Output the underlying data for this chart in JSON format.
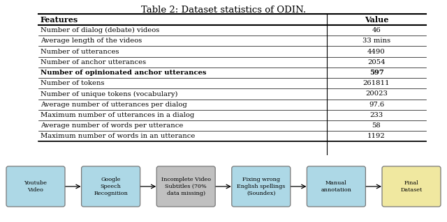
{
  "title": "Table 2: Dataset statistics of ODIN.",
  "headers": [
    "Features",
    "Value"
  ],
  "rows": [
    [
      "Number of dialog (debate) videos",
      "46"
    ],
    [
      "Average length of the videos",
      "33 mins"
    ],
    [
      "Number of utterances",
      "4490"
    ],
    [
      "Number of anchor utterances",
      "2054"
    ],
    [
      "Number of opinionated anchor utterances",
      "597"
    ],
    [
      "Number of tokens",
      "261811"
    ],
    [
      "Number of unique tokens (vocabulary)",
      "20023"
    ],
    [
      "Average number of utterances per dialog",
      "97.6"
    ],
    [
      "Maximum number of utterances in a dialog",
      "233"
    ],
    [
      "Average number of words per utterance",
      "58"
    ],
    [
      "Maximum number of words in an utterance",
      "1192"
    ]
  ],
  "bold_row_index": 4,
  "flow_boxes": [
    {
      "label": "Youtube\nVideo",
      "color": "#add8e6"
    },
    {
      "label": "Google\nSpeech\nRecognition",
      "color": "#add8e6"
    },
    {
      "label": "Incomplete Video\nSubtitles (70%\ndata missing)",
      "color": "#c0c0c0"
    },
    {
      "label": "Fixing wrong\nEnglish spellings\n(Soundex)",
      "color": "#add8e6"
    },
    {
      "label": "Manual\nannotation",
      "color": "#add8e6"
    },
    {
      "label": "Final\nDataset",
      "color": "#f0e8a0"
    }
  ],
  "bg_color": "#ffffff"
}
